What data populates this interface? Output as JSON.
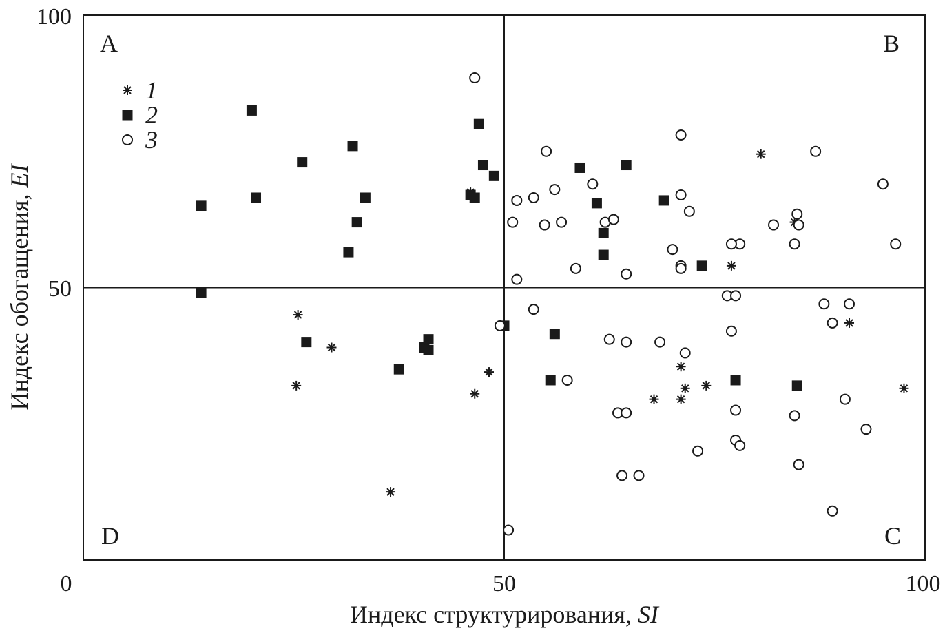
{
  "chart_data": {
    "type": "scatter",
    "xlabel": "Индекс структурирования, ",
    "xlabel_italic": "SI",
    "ylabel": "Индекс обогащения, ",
    "ylabel_italic": "EI",
    "xlim": [
      0,
      100
    ],
    "ylim": [
      0,
      100
    ],
    "x_ticks": [
      "0",
      "50",
      "100"
    ],
    "y_ticks": [
      "100",
      "50"
    ],
    "reference_lines": {
      "x": 50,
      "y": 50
    },
    "grid": false,
    "legend_position": "top-left",
    "quadrant_labels": {
      "top_left": "A",
      "top_right": "B",
      "bottom_right": "C",
      "bottom_left": "D"
    },
    "series": [
      {
        "name": "1",
        "marker": "asterisk",
        "points": [
          [
            25.5,
            45
          ],
          [
            29.5,
            39
          ],
          [
            25.3,
            32
          ],
          [
            36.5,
            12.5
          ],
          [
            46.5,
            30.5
          ],
          [
            48.2,
            34.5
          ],
          [
            46,
            67.5
          ],
          [
            80.5,
            74.5
          ],
          [
            84.5,
            62
          ],
          [
            77,
            54
          ],
          [
            91,
            43.5
          ],
          [
            97.5,
            31.5
          ],
          [
            71,
            35.5
          ],
          [
            71.5,
            31.5
          ],
          [
            71,
            29.5
          ],
          [
            74,
            32
          ],
          [
            67.8,
            29.5
          ]
        ]
      },
      {
        "name": "2",
        "marker": "filled-square",
        "points": [
          [
            14,
            65
          ],
          [
            20.5,
            66.5
          ],
          [
            20,
            82.5
          ],
          [
            26.5,
            40
          ],
          [
            26,
            73
          ],
          [
            32,
            76
          ],
          [
            33.5,
            66.5
          ],
          [
            32.5,
            62
          ],
          [
            31.5,
            56.5
          ],
          [
            14,
            49
          ],
          [
            37.5,
            35
          ],
          [
            40.5,
            39
          ],
          [
            41,
            38.5
          ],
          [
            41,
            40.5
          ],
          [
            46,
            67
          ],
          [
            46.5,
            66.5
          ],
          [
            47,
            80
          ],
          [
            47.5,
            72.5
          ],
          [
            48.8,
            70.5
          ],
          [
            50,
            43
          ],
          [
            56,
            41.5
          ],
          [
            55.5,
            33
          ],
          [
            59,
            72
          ],
          [
            61,
            65.5
          ],
          [
            61.8,
            60
          ],
          [
            61.8,
            56
          ],
          [
            64.5,
            72.5
          ],
          [
            69,
            66
          ],
          [
            73.5,
            54
          ],
          [
            77.5,
            33
          ],
          [
            84.8,
            32
          ]
        ]
      },
      {
        "name": "3",
        "marker": "open-circle",
        "points": [
          [
            46.5,
            88.5
          ],
          [
            51,
            62
          ],
          [
            51.5,
            66
          ],
          [
            51.5,
            51.5
          ],
          [
            53.5,
            66.5
          ],
          [
            55,
            75
          ],
          [
            54.8,
            61.5
          ],
          [
            56,
            68
          ],
          [
            56.8,
            62
          ],
          [
            58.5,
            53.5
          ],
          [
            60.5,
            69
          ],
          [
            62,
            62
          ],
          [
            63,
            62.5
          ],
          [
            64.5,
            52.5
          ],
          [
            71,
            78
          ],
          [
            71,
            67
          ],
          [
            72,
            64
          ],
          [
            71,
            54
          ],
          [
            71,
            53.5
          ],
          [
            70,
            57
          ],
          [
            57.5,
            33
          ],
          [
            53.5,
            46
          ],
          [
            49.5,
            43
          ],
          [
            50.5,
            5.5
          ],
          [
            62.5,
            40.5
          ],
          [
            64.5,
            40
          ],
          [
            68.5,
            40
          ],
          [
            71.5,
            38
          ],
          [
            63.5,
            27
          ],
          [
            64.5,
            27
          ],
          [
            64,
            15.5
          ],
          [
            66,
            15.5
          ],
          [
            73,
            20
          ],
          [
            76.5,
            48.5
          ],
          [
            77.5,
            48.5
          ],
          [
            78,
            58
          ],
          [
            77,
            58
          ],
          [
            77,
            42
          ],
          [
            77.5,
            27.5
          ],
          [
            77.5,
            22
          ],
          [
            78,
            21
          ],
          [
            82,
            61.5
          ],
          [
            85,
            61.5
          ],
          [
            84.5,
            58
          ],
          [
            84.8,
            63.5
          ],
          [
            87,
            75
          ],
          [
            88,
            47
          ],
          [
            89,
            43.5
          ],
          [
            91,
            47
          ],
          [
            90.5,
            29.5
          ],
          [
            93,
            24
          ],
          [
            95,
            69
          ],
          [
            96.5,
            58
          ],
          [
            84.5,
            26.5
          ],
          [
            85,
            17.5
          ],
          [
            89,
            9
          ]
        ]
      }
    ],
    "legend": [
      {
        "label": "1",
        "marker": "asterisk"
      },
      {
        "label": "2",
        "marker": "filled-square"
      },
      {
        "label": "3",
        "marker": "open-circle"
      }
    ]
  }
}
